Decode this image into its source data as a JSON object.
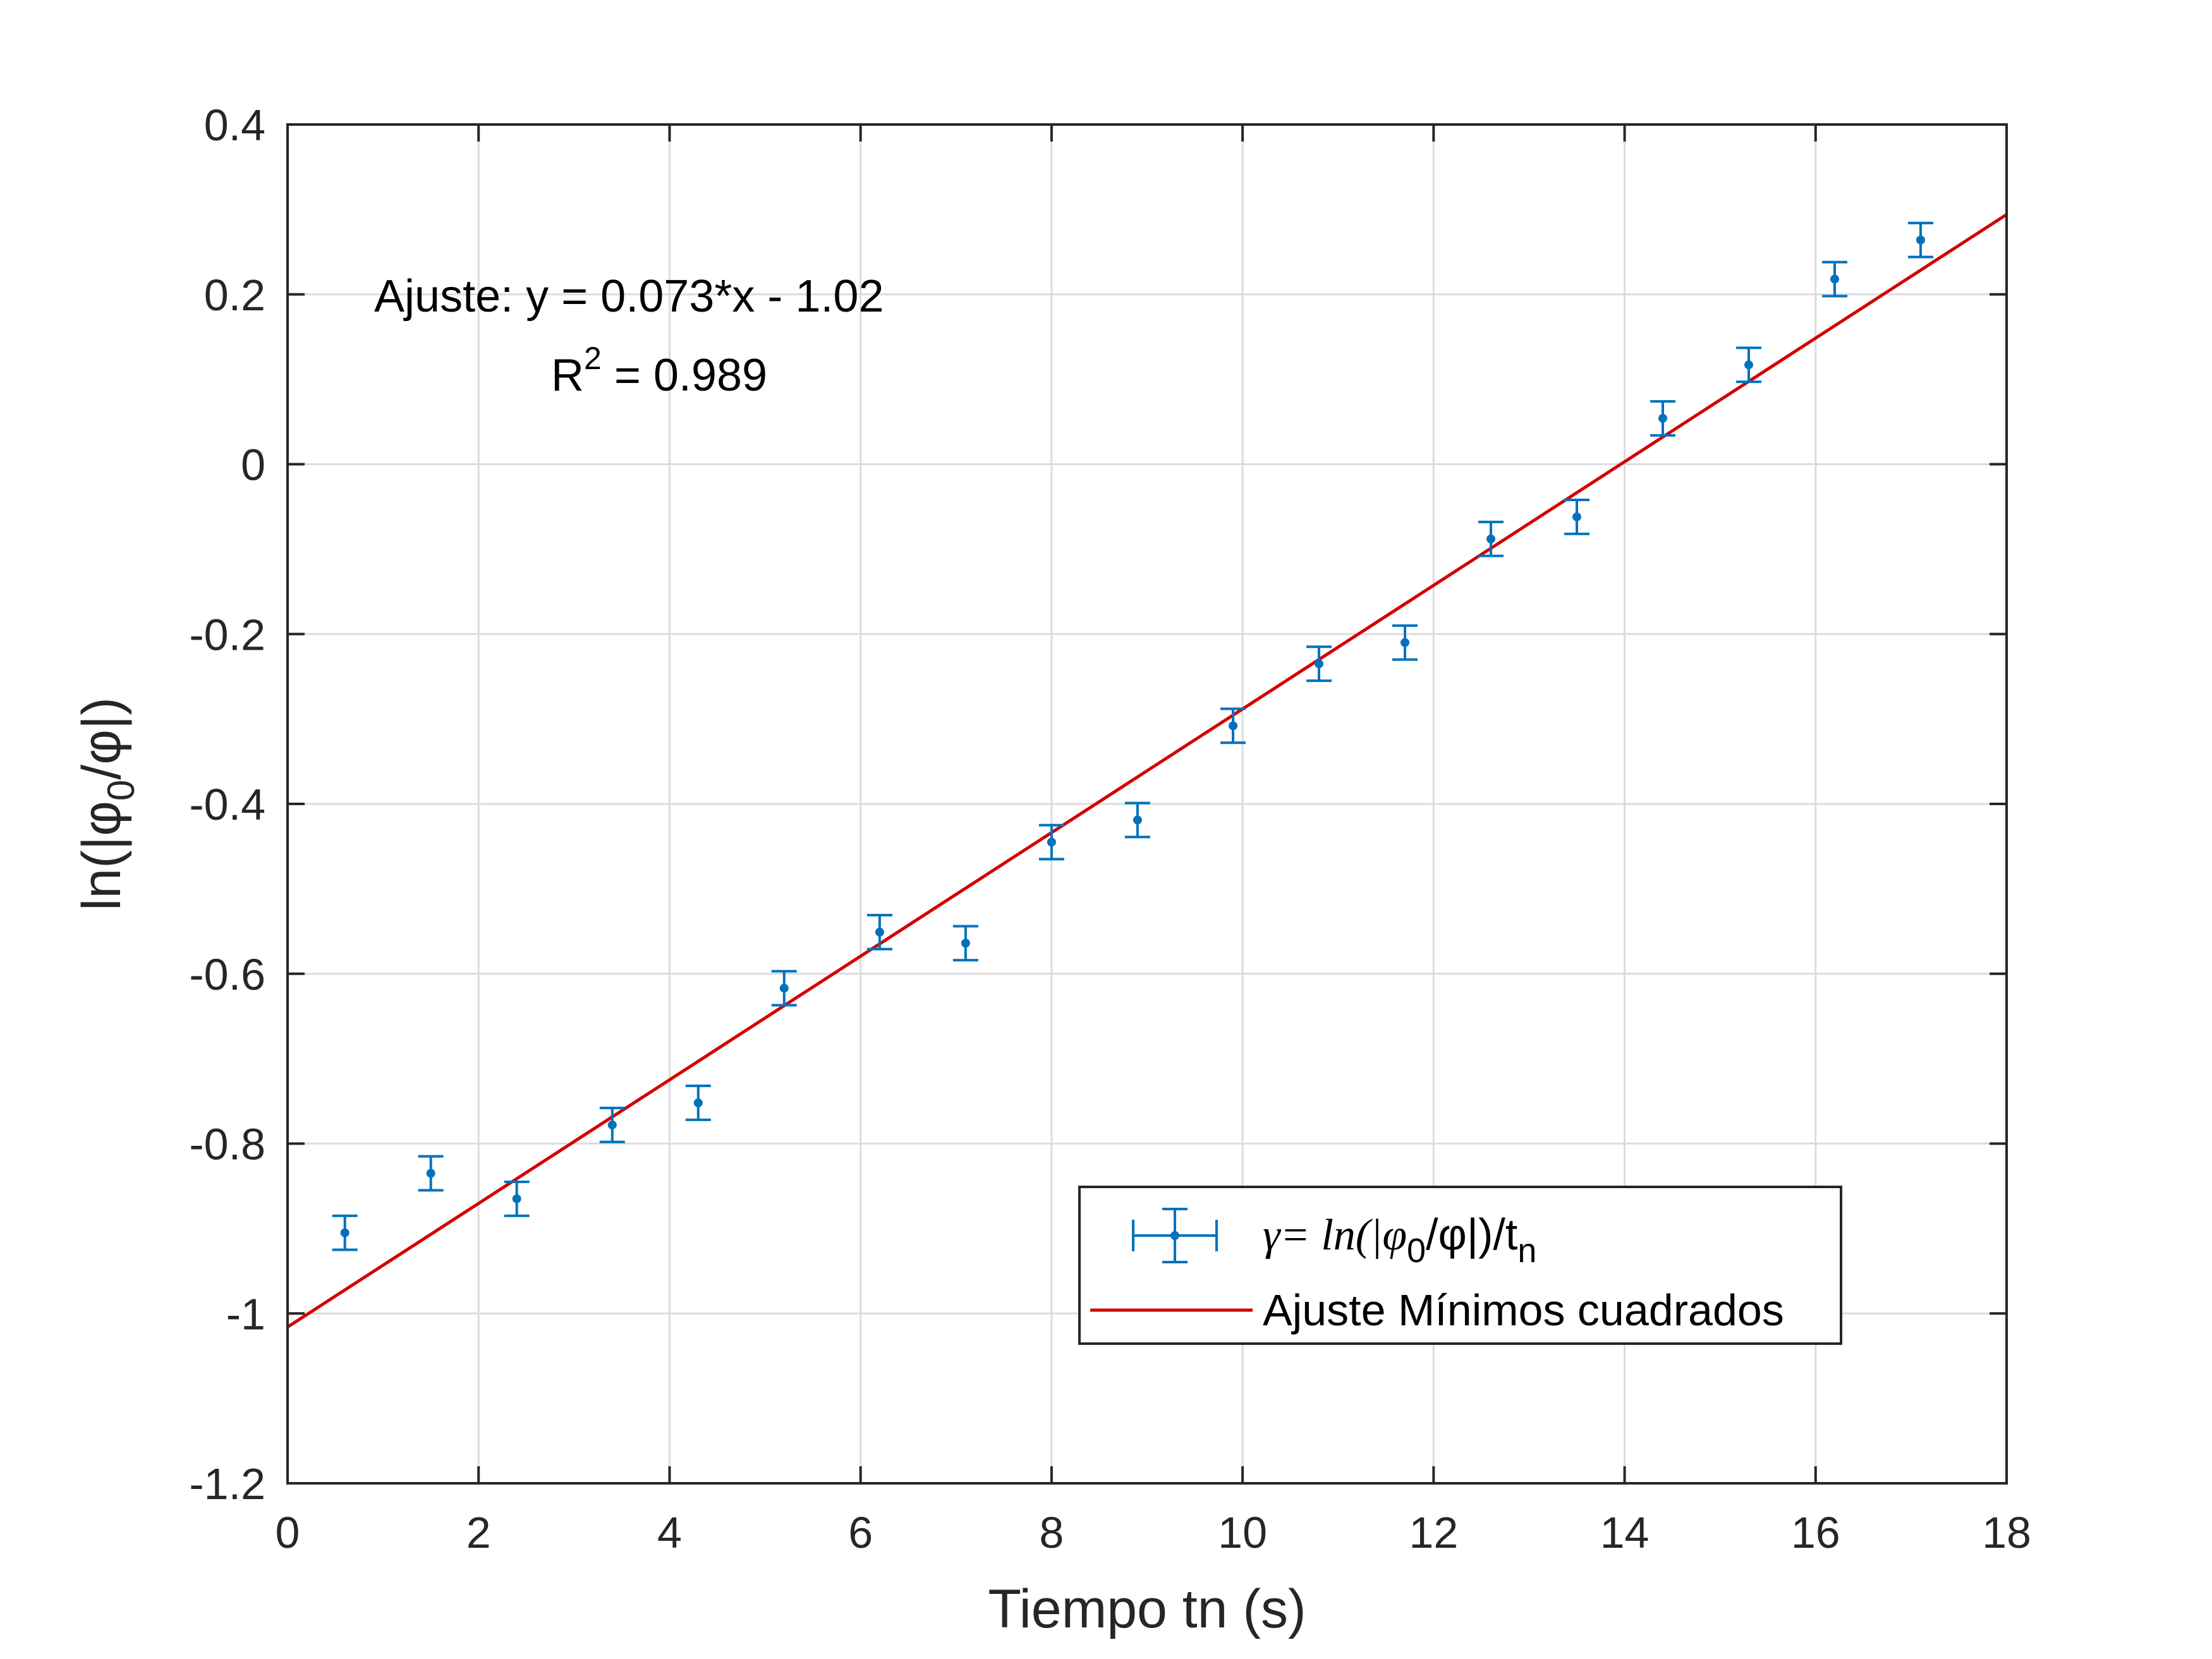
{
  "chart_data": {
    "type": "scatter",
    "xlabel": "Tiempo tn (s)",
    "ylabel": "ln(|φ0/φ|)",
    "xlim": [
      0,
      18
    ],
    "ylim": [
      -1.2,
      0.4
    ],
    "x_ticks": [
      "0",
      "2",
      "4",
      "6",
      "8",
      "10",
      "12",
      "14",
      "16",
      "18"
    ],
    "y_ticks": [
      "-1.2",
      "-1",
      "-0.8",
      "-0.6",
      "-0.4",
      "-0.2",
      "0",
      "0.2",
      "0.4"
    ],
    "grid": true,
    "annotations": {
      "fit_equation": "Ajuste:  y = 0.073*x - 1.02",
      "r2_label": "R",
      "r2_superscript": "2",
      "r2_value": " = 0.989"
    },
    "series": [
      {
        "name": "γ= ln(|φ0/φ|)/tn",
        "type": "errorbar",
        "color": "#0072BD",
        "points": [
          {
            "x": 0.6,
            "y": -0.905,
            "err": 0.02
          },
          {
            "x": 1.5,
            "y": -0.835,
            "err": 0.02
          },
          {
            "x": 2.4,
            "y": -0.865,
            "err": 0.02
          },
          {
            "x": 3.4,
            "y": -0.778,
            "err": 0.02
          },
          {
            "x": 4.3,
            "y": -0.752,
            "err": 0.02
          },
          {
            "x": 5.2,
            "y": -0.617,
            "err": 0.02
          },
          {
            "x": 6.2,
            "y": -0.551,
            "err": 0.02
          },
          {
            "x": 7.1,
            "y": -0.564,
            "err": 0.02
          },
          {
            "x": 8.0,
            "y": -0.445,
            "err": 0.02
          },
          {
            "x": 8.9,
            "y": -0.419,
            "err": 0.02
          },
          {
            "x": 9.9,
            "y": -0.308,
            "err": 0.02
          },
          {
            "x": 10.8,
            "y": -0.235,
            "err": 0.02
          },
          {
            "x": 11.7,
            "y": -0.21,
            "err": 0.02
          },
          {
            "x": 12.6,
            "y": -0.088,
            "err": 0.02
          },
          {
            "x": 13.5,
            "y": -0.062,
            "err": 0.02
          },
          {
            "x": 14.4,
            "y": 0.054,
            "err": 0.02
          },
          {
            "x": 15.3,
            "y": 0.117,
            "err": 0.02
          },
          {
            "x": 16.2,
            "y": 0.218,
            "err": 0.02
          },
          {
            "x": 17.1,
            "y": 0.264,
            "err": 0.02
          }
        ]
      },
      {
        "name": "Ajuste Mínimos cuadrados",
        "type": "line",
        "color": "#D40000",
        "x": [
          0,
          18
        ],
        "y": [
          -1.016,
          0.294
        ]
      }
    ],
    "legend": {
      "position": "bottom-right",
      "entry1_prefix": "γ= ln(|φ",
      "entry1_sub1": "0",
      "entry1_mid": "/φ|)/t",
      "entry1_sub2": "n",
      "entry2": "Ajuste Mínimos cuadrados"
    },
    "ylabel_parts": {
      "prefix": "ln(|φ",
      "sub": "0",
      "suffix": "/φ|)"
    }
  }
}
